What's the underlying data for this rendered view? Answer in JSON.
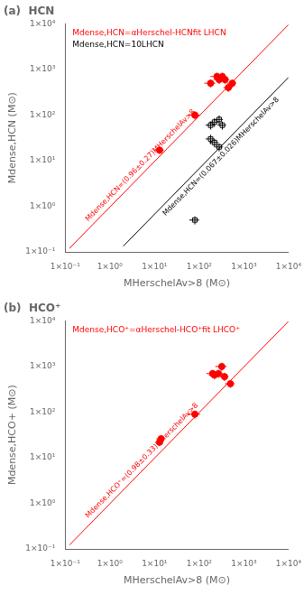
{
  "chart_data": [
    {
      "type": "scatter",
      "title": "(a)  HCN",
      "x_label": "MHerschelAv>8 (M⊙)",
      "y_label": "Mdense,HCN (M⊙)",
      "log": true,
      "grid": false,
      "xlim": [
        0.1,
        10000
      ],
      "ylim": [
        0.1,
        10000
      ],
      "xticks": [
        {
          "value": 0.1,
          "label": "1×10⁻¹"
        },
        {
          "value": 1,
          "label": "1×10⁰"
        },
        {
          "value": 10,
          "label": "1×10¹"
        },
        {
          "value": 100,
          "label": "1×10²"
        },
        {
          "value": 1000,
          "label": "1×10³"
        },
        {
          "value": 10000,
          "label": "1×10⁴"
        }
      ],
      "yticks": [
        {
          "value": 0.1,
          "label": "1×10⁻¹"
        },
        {
          "value": 1,
          "label": "1×10⁰"
        },
        {
          "value": 10,
          "label": "1×10¹"
        },
        {
          "value": 100,
          "label": "1×10²"
        },
        {
          "value": 1000,
          "label": "1×10³"
        },
        {
          "value": 10000,
          "label": "1×10⁴"
        }
      ],
      "annotations": [
        {
          "text": "Mdense,HCN=αHerschel-HCNfit LHCN",
          "color": "red"
        },
        {
          "text": "Mdense,HCN=10LHCN",
          "color": "black"
        }
      ],
      "series": [
        {
          "type": "line",
          "color": "red",
          "label": "Mdense,HCN=(0.96±0.27)MHerschelAv>8",
          "x": [
            0.125,
            10000
          ],
          "values": [
            0.12,
            9600
          ]
        },
        {
          "type": "line",
          "color": "black",
          "label": "Mdense,HCN=(0.067±0.026)MHerschelAv>8",
          "x": [
            2,
            10000
          ],
          "values": [
            0.134,
            670
          ]
        },
        {
          "type": "scatter",
          "color": "red",
          "marker": "circle",
          "x": [
            13,
            80,
            180,
            250,
            280,
            330,
            380,
            450,
            550
          ],
          "values": [
            17,
            100,
            500,
            700,
            600,
            700,
            600,
            400,
            500
          ],
          "xerr": [
            3,
            25,
            50,
            70,
            70,
            80,
            90,
            100,
            130
          ],
          "yerr": [
            3,
            20,
            100,
            150,
            120,
            150,
            120,
            80,
            100
          ]
        },
        {
          "type": "scatter",
          "color": "black",
          "marker": "open_square",
          "x": [
            180,
            220,
            280,
            330,
            180,
            220,
            280,
            80
          ],
          "values": [
            60,
            70,
            80,
            60,
            30,
            25,
            20,
            0.5
          ],
          "xerr": [
            40,
            50,
            60,
            70,
            40,
            50,
            60,
            20
          ],
          "yerr": [
            12,
            15,
            18,
            12,
            7,
            5,
            4,
            0.1
          ]
        }
      ]
    },
    {
      "type": "scatter",
      "title": "(b)  HCO⁺",
      "x_label": "MHerschelAv>8 (M⊙)",
      "y_label": "Mdense,HCO+ (M⊙)",
      "log": true,
      "grid": false,
      "xlim": [
        0.1,
        10000
      ],
      "ylim": [
        0.1,
        10000
      ],
      "xticks": [
        {
          "value": 0.1,
          "label": "1×10⁻¹"
        },
        {
          "value": 1,
          "label": "1×10⁰"
        },
        {
          "value": 10,
          "label": "1×10¹"
        },
        {
          "value": 100,
          "label": "1×10²"
        },
        {
          "value": 1000,
          "label": "1×10³"
        },
        {
          "value": 10000,
          "label": "1×10⁴"
        }
      ],
      "yticks": [
        {
          "value": 0.1,
          "label": "1×10⁻¹"
        },
        {
          "value": 1,
          "label": "1×10⁰"
        },
        {
          "value": 10,
          "label": "1×10¹"
        },
        {
          "value": 100,
          "label": "1×10²"
        },
        {
          "value": 1000,
          "label": "1×10³"
        },
        {
          "value": 10000,
          "label": "1×10⁴"
        }
      ],
      "annotations": [
        {
          "text": "Mdense,HCO⁺=αHerschel-HCO⁺fit LHCO⁺",
          "color": "red"
        }
      ],
      "series": [
        {
          "type": "line",
          "color": "red",
          "label": "Mdense,HCO⁺=(0.98±0.33)MHerschelAv>8",
          "x": [
            0.125,
            10000
          ],
          "values": [
            0.1225,
            9800
          ]
        },
        {
          "type": "scatter",
          "color": "red",
          "marker": "circle",
          "x": [
            13,
            14,
            80,
            200,
            220,
            270,
            320,
            370,
            500
          ],
          "values": [
            22,
            26,
            90,
            700,
            650,
            700,
            1000,
            600,
            420
          ],
          "xerr": [
            2,
            3,
            25,
            55,
            55,
            70,
            90,
            80,
            120
          ],
          "yerr": [
            4,
            5,
            18,
            140,
            130,
            140,
            200,
            120,
            80
          ]
        }
      ]
    }
  ]
}
